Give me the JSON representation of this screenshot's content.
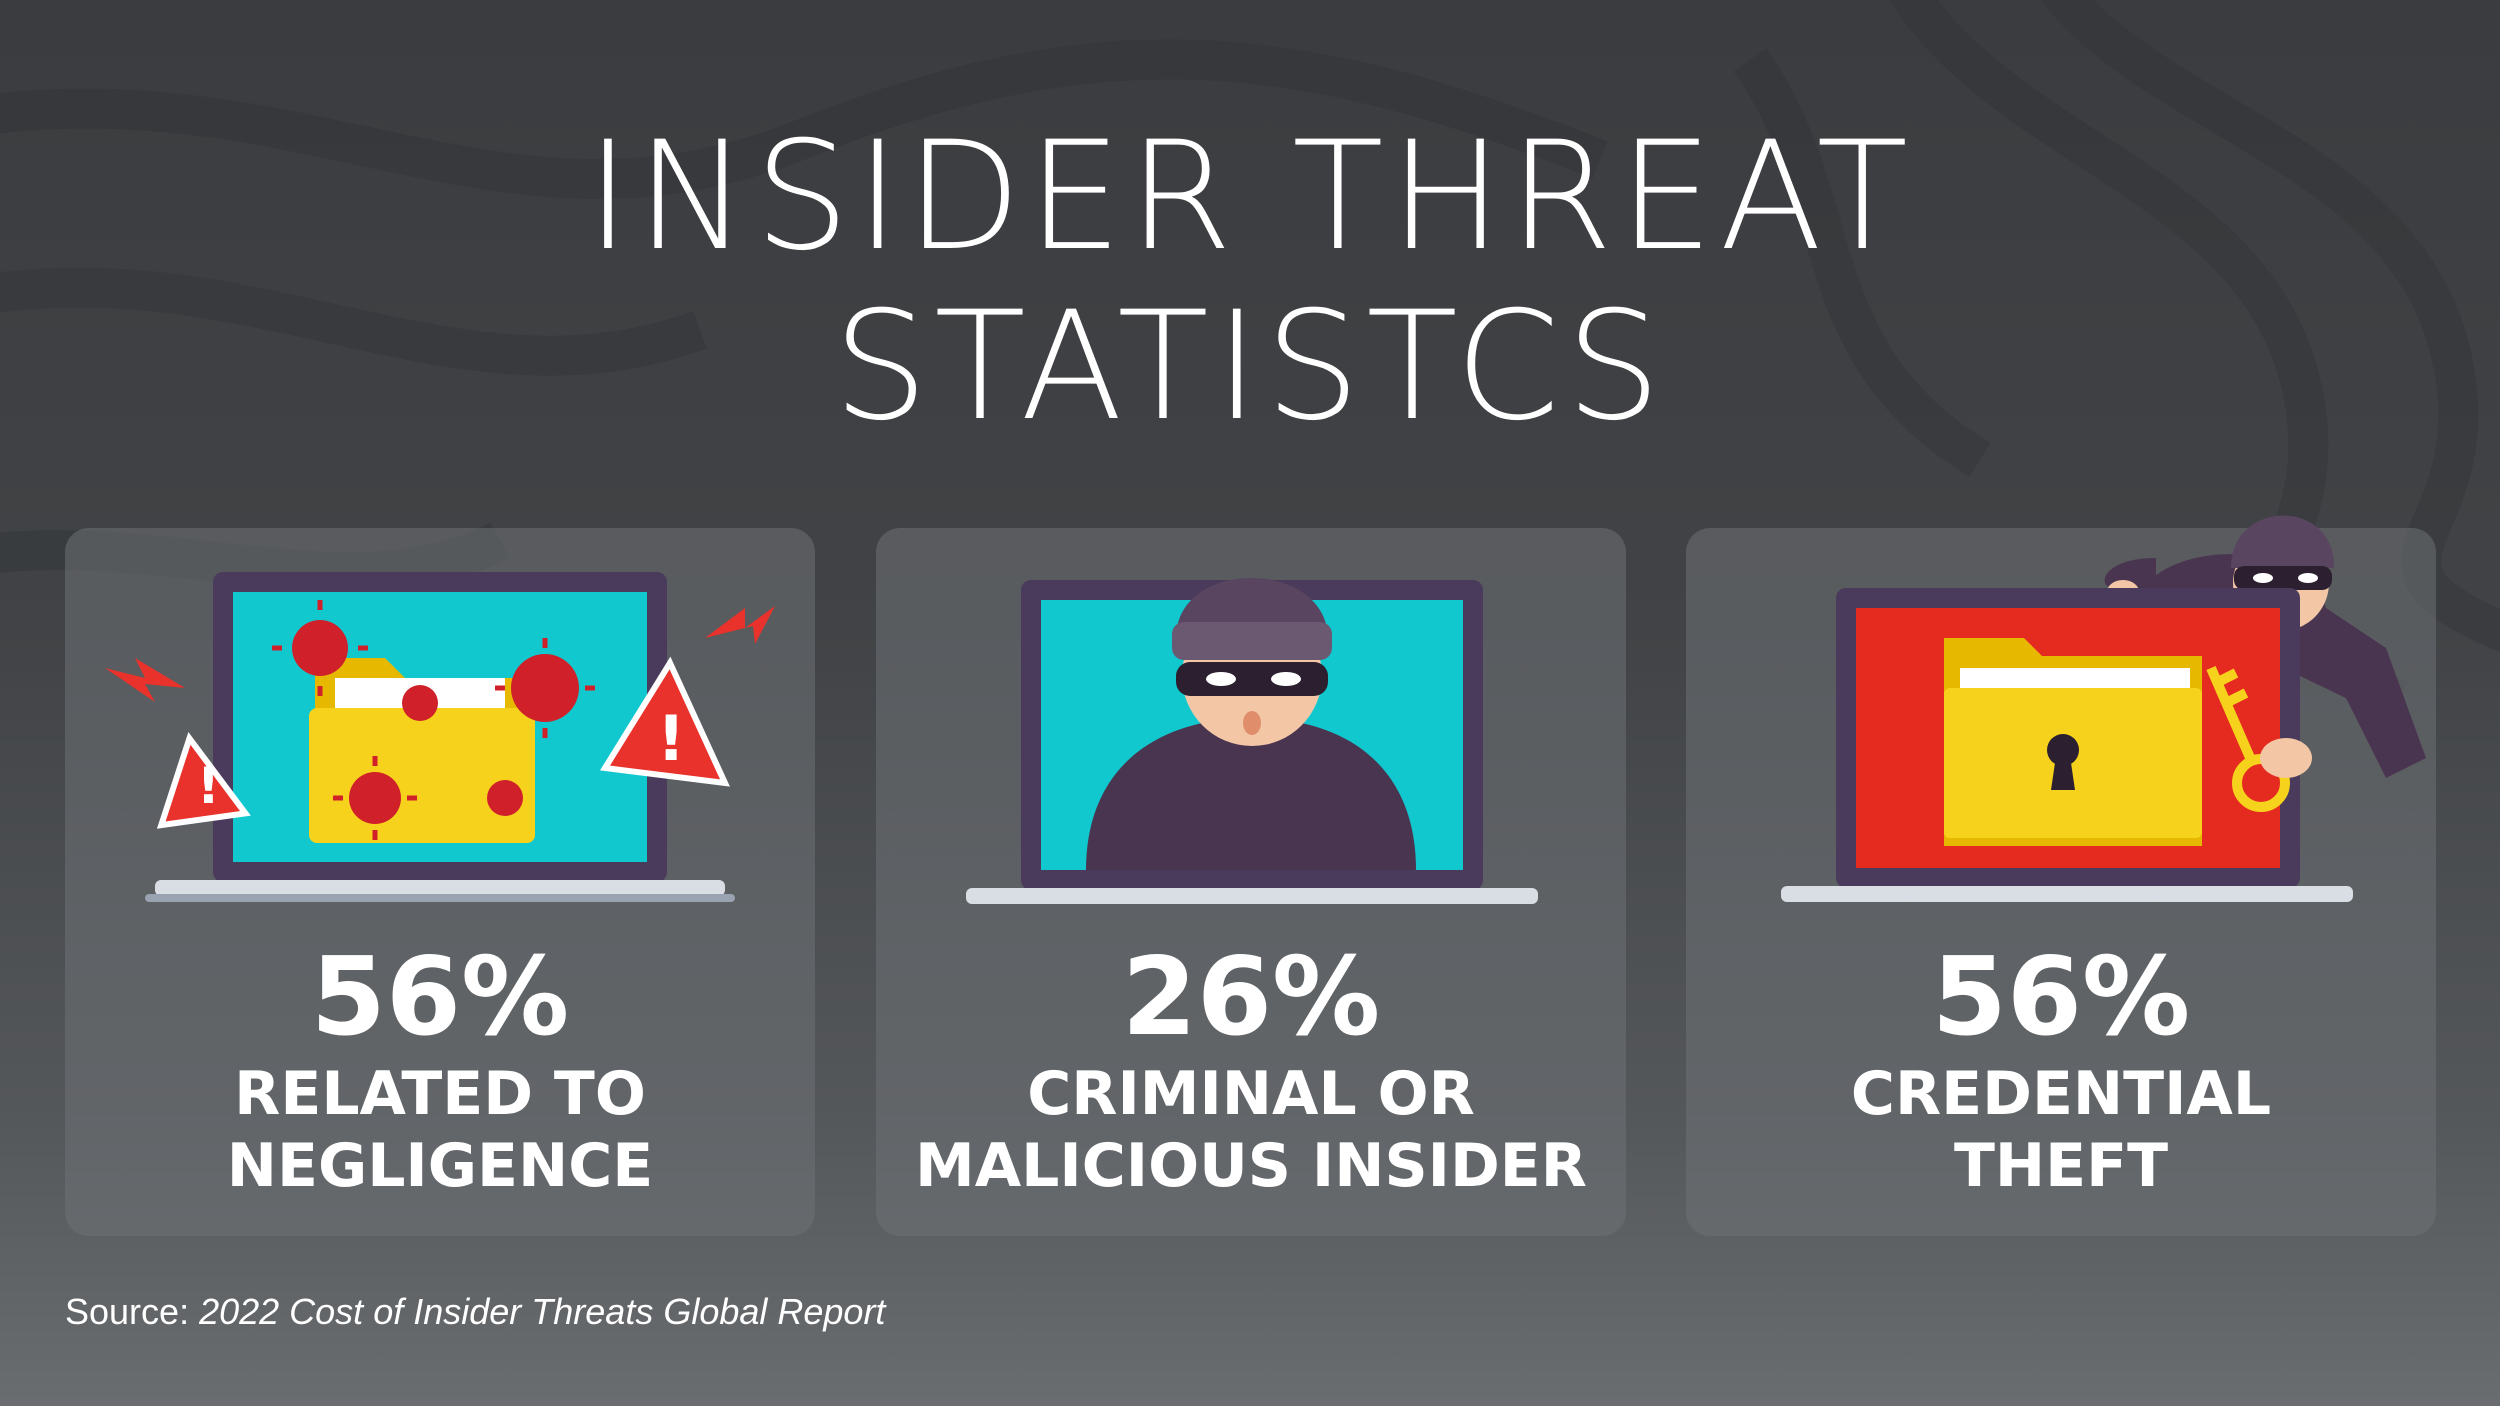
{
  "title": {
    "line1": "INSIDER THREAT",
    "line2": "STATISTCS"
  },
  "cards": [
    {
      "value": "56%",
      "label": "RELATED TO\nNEGLIGENCE",
      "illustration": "laptop-folder-virus-warning-icon"
    },
    {
      "value": "26%",
      "label": "CRIMINAL OR\nMALICIOUS INSIDER",
      "illustration": "laptop-masked-thief-icon"
    },
    {
      "value": "56%",
      "label": "CREDENTIAL\nTHEFT",
      "illustration": "laptop-locked-folder-thief-key-icon"
    }
  ],
  "source": {
    "prefix": "Source: ",
    "report": "2022 Cost of Insider Threats Global Report"
  },
  "colors": {
    "background": "#3f4144",
    "card": "#5f6266",
    "screen_teal": "#12c8cf",
    "screen_red": "#e52a1f",
    "folder_yellow": "#f7d21c",
    "warning_red": "#e8322b",
    "thief_purple": "#4a3550",
    "text": "#ffffff"
  }
}
